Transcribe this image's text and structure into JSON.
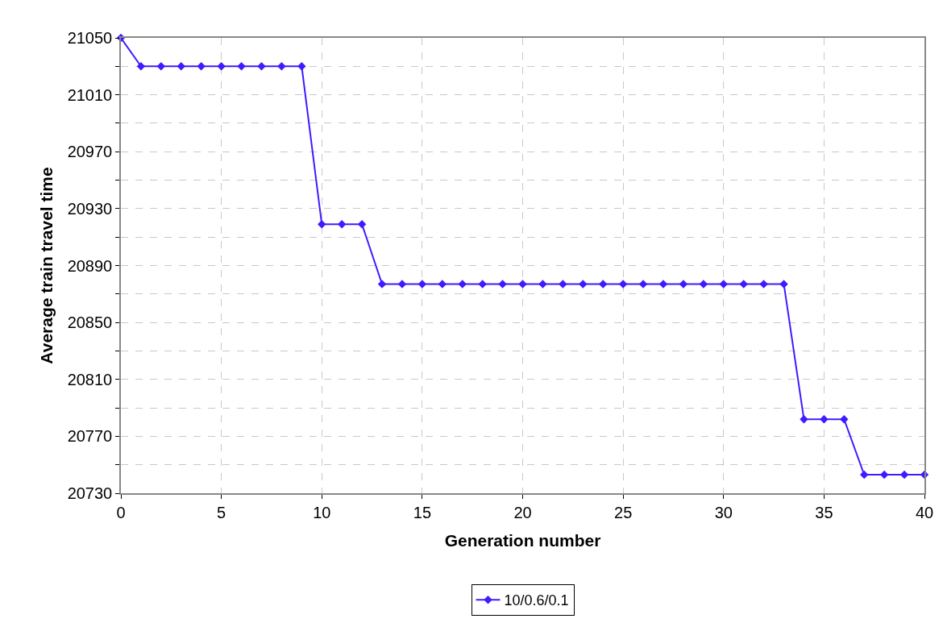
{
  "chart_data": {
    "type": "line",
    "xlabel": "Generation number",
    "ylabel": "Average train travel time",
    "x": [
      0,
      1,
      2,
      3,
      4,
      5,
      6,
      7,
      8,
      9,
      10,
      11,
      12,
      13,
      14,
      15,
      16,
      17,
      18,
      19,
      20,
      21,
      22,
      23,
      24,
      25,
      26,
      27,
      28,
      29,
      30,
      31,
      32,
      33,
      34,
      35,
      36,
      37,
      38,
      39,
      40
    ],
    "series": [
      {
        "name": "10/0.6/0.1",
        "color": "#3d1cff",
        "values": [
          21050,
          21030,
          21030,
          21030,
          21030,
          21030,
          21030,
          21030,
          21030,
          21030,
          20919,
          20919,
          20919,
          20877,
          20877,
          20877,
          20877,
          20877,
          20877,
          20877,
          20877,
          20877,
          20877,
          20877,
          20877,
          20877,
          20877,
          20877,
          20877,
          20877,
          20877,
          20877,
          20877,
          20877,
          20782,
          20782,
          20782,
          20743,
          20743,
          20743,
          20743
        ]
      }
    ],
    "xlim": [
      0,
      40
    ],
    "xticks": [
      0,
      5,
      10,
      15,
      20,
      25,
      30,
      35,
      40
    ],
    "ylim": [
      20730,
      21050
    ],
    "yticks": [
      20730,
      {
        "value": 20750,
        "label": null
      },
      20770,
      {
        "value": 20790,
        "label": null
      },
      20810,
      {
        "value": 20830,
        "label": null
      },
      20850,
      {
        "value": 20870,
        "label": null
      },
      20890,
      {
        "value": 20910,
        "label": null
      },
      20930,
      {
        "value": 20950,
        "label": null
      },
      20970,
      {
        "value": 20990,
        "label": null
      },
      21010,
      {
        "value": 21030,
        "label": null
      },
      21050
    ],
    "grid": true,
    "legend": "bottom",
    "marker": "diamond",
    "line_style": "solid"
  }
}
